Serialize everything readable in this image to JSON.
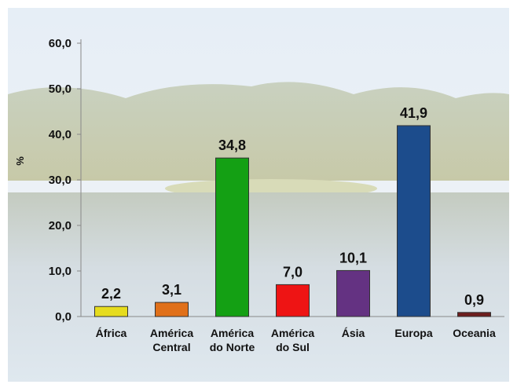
{
  "chart_data": {
    "type": "bar",
    "y_label": "%",
    "categories": [
      "África",
      "América\nCentral",
      "América\ndo Norte",
      "América\ndo Sul",
      "Ásia",
      "Europa",
      "Oceania"
    ],
    "values": [
      2.2,
      3.1,
      34.8,
      7.0,
      10.1,
      41.9,
      0.9
    ],
    "value_labels": [
      "2,2",
      "3,1",
      "34,8",
      "7,0",
      "10,1",
      "41,9",
      "0,9"
    ],
    "colors": [
      "#e6dc1e",
      "#e0701a",
      "#14a014",
      "#ee1414",
      "#643282",
      "#1c4c8c",
      "#6e1e1e"
    ],
    "ylim": [
      0,
      60
    ],
    "yticks": [
      {
        "value": 0,
        "label": "0,0"
      },
      {
        "value": 10,
        "label": "10,0"
      },
      {
        "value": 20,
        "label": "20,0"
      },
      {
        "value": 30,
        "label": "30,0"
      },
      {
        "value": 40,
        "label": "40,0"
      },
      {
        "value": 50,
        "label": "50,0"
      },
      {
        "value": 60,
        "label": "60,0"
      }
    ]
  }
}
